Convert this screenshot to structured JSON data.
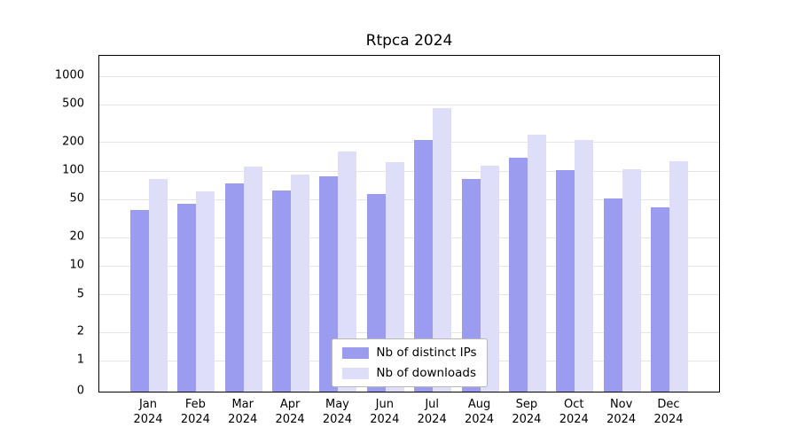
{
  "chart": {
    "colors": {
      "ips": "#9b9bef",
      "downloads": "#dedef9",
      "grid": "#e6e6e6",
      "axis": "#000000",
      "legend_border": "#b8b8b8",
      "background": "#ffffff"
    }
  },
  "chart_data": {
    "type": "bar",
    "title": "Rtpca 2024",
    "categories": [
      "Jan 2024",
      "Feb 2024",
      "Mar 2024",
      "Apr 2024",
      "May 2024",
      "Jun 2024",
      "Jul 2024",
      "Aug 2024",
      "Sep 2024",
      "Oct 2024",
      "Nov 2024",
      "Dec 2024"
    ],
    "series": [
      {
        "name": "Nb of distinct IPs",
        "key": "ips",
        "values": [
          39,
          45,
          74,
          62,
          88,
          58,
          215,
          82,
          140,
          102,
          52,
          42
        ]
      },
      {
        "name": "Nb of downloads",
        "key": "downloads",
        "values": [
          82,
          61,
          112,
          93,
          160,
          125,
          460,
          115,
          240,
          215,
          105,
          128
        ]
      }
    ],
    "yscale": "symlog",
    "yticks": [
      0,
      1,
      2,
      5,
      10,
      20,
      50,
      100,
      200,
      500,
      1000
    ],
    "ylim": [
      0,
      1000
    ],
    "xlabel": "",
    "ylabel": "",
    "grid": true,
    "legend_position": "lower center"
  }
}
